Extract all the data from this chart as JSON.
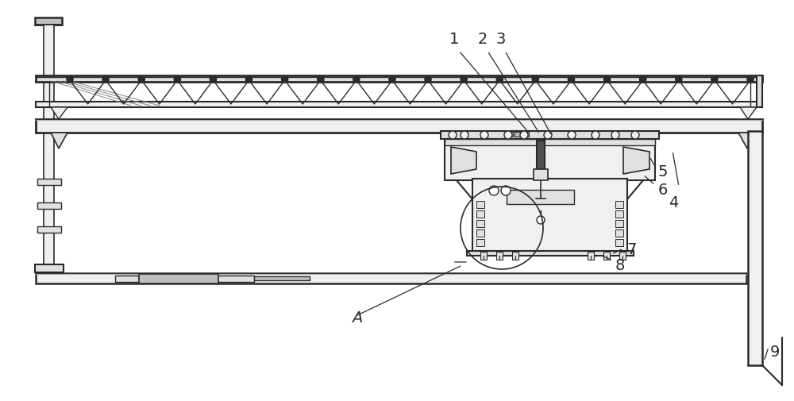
{
  "bg_color": "#ffffff",
  "lc": "#2a2a2a",
  "fc_light": "#f0f0f0",
  "fc_mid": "#e0e0e0",
  "fc_dark": "#c0c0c0",
  "fc_vdark": "#505050",
  "fig_width": 10.0,
  "fig_height": 5.06,
  "dpi": 100
}
